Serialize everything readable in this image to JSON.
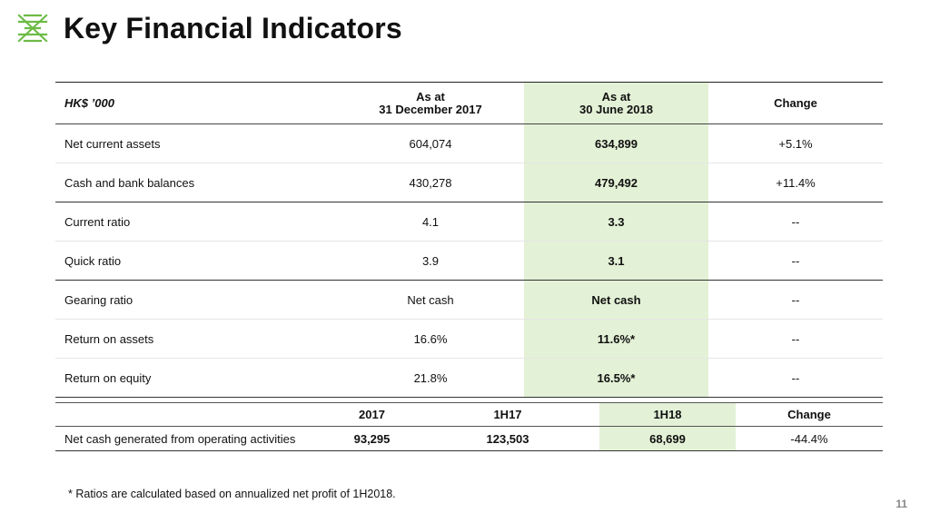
{
  "title": "Key Financial Indicators",
  "colors": {
    "accent": "#6dbb45",
    "highlight": "#e3f1d6"
  },
  "table1": {
    "headers": {
      "label": "HK$ ’000",
      "col1_line1": "As at",
      "col1_line2": "31 December 2017",
      "col2_line1": "As at",
      "col2_line2": "30 June 2018",
      "col3": "Change"
    },
    "rows": [
      {
        "label": "Net current assets",
        "v2017": "604,074",
        "v2018": "634,899",
        "change": "+5.1%"
      },
      {
        "label": "Cash and bank balances",
        "v2017": "430,278",
        "v2018": "479,492",
        "change": "+11.4%"
      },
      {
        "label": "Current ratio",
        "v2017": "4.1",
        "v2018": "3.3",
        "change": "--"
      },
      {
        "label": "Quick ratio",
        "v2017": "3.9",
        "v2018": "3.1",
        "change": "--"
      },
      {
        "label": "Gearing ratio",
        "v2017": "Net cash",
        "v2018": "Net cash",
        "change": "--"
      },
      {
        "label": "Return on assets",
        "v2017": "16.6%",
        "v2018": "11.6%*",
        "change": "--"
      },
      {
        "label": "Return on equity",
        "v2017": "21.8%",
        "v2018": "16.5%*",
        "change": "--"
      }
    ]
  },
  "table2": {
    "headers": {
      "h1": "2017",
      "h2": "1H17",
      "h3": "1H18",
      "h4": "Change"
    },
    "row": {
      "label": "Net cash generated from operating activities",
      "v1": "93,295",
      "v2": "123,503",
      "v3": "68,699",
      "change": "-44.4%"
    }
  },
  "footnote": "* Ratios are calculated based on annualized net profit of 1H2018.",
  "page_number": "11"
}
